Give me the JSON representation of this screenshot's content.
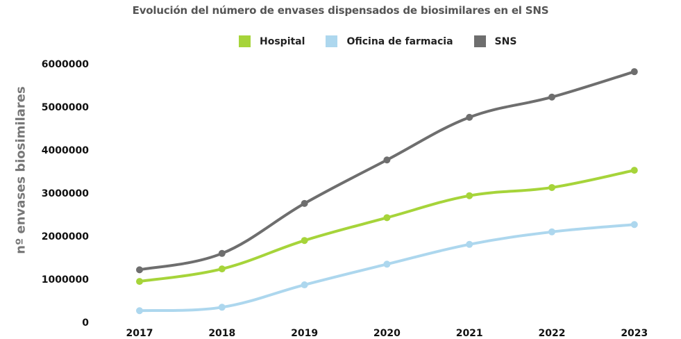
{
  "chart_data": {
    "type": "line",
    "title": "Evolución del número de envases dispensados de biosimilares en el SNS",
    "xlabel": "",
    "ylabel": "nº envases biosimilares",
    "x": [
      "2017",
      "2018",
      "2019",
      "2020",
      "2021",
      "2022",
      "2023"
    ],
    "yticks": [
      "0",
      "1000000",
      "2000000",
      "3000000",
      "4000000",
      "5000000",
      "6000000"
    ],
    "ylim": [
      0,
      6000000
    ],
    "grid": false,
    "legend_position": "top-center",
    "series": [
      {
        "name": "Hospital",
        "color": "#A6D43A",
        "values": [
          950000,
          1240000,
          1900000,
          2430000,
          2940000,
          3130000,
          3530000
        ]
      },
      {
        "name": "Oficina de farmacia",
        "color": "#ADD7EE",
        "values": [
          270000,
          350000,
          870000,
          1350000,
          1810000,
          2100000,
          2270000
        ]
      },
      {
        "name": "SNS",
        "color": "#6E6E6E",
        "values": [
          1220000,
          1600000,
          2760000,
          3770000,
          4760000,
          5230000,
          5820000
        ]
      }
    ]
  }
}
